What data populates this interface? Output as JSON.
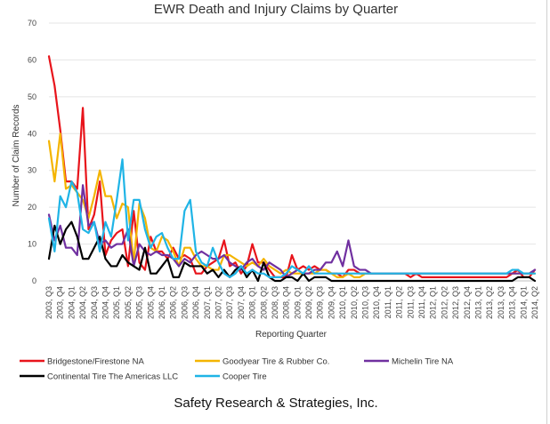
{
  "chart_data": {
    "type": "line",
    "title": "EWR Death and Injury Claims by Quarter",
    "xlabel": "Reporting Quarter",
    "ylabel": "Number of Claim Records",
    "ylim": [
      0,
      70
    ],
    "yticks": [
      0,
      10,
      20,
      30,
      40,
      50,
      60,
      70
    ],
    "grid": true,
    "legend_position": "bottom",
    "categories": [
      "2003, Q3",
      "2003, Q4",
      "2004, Q1",
      "2004, Q2",
      "2004, Q3",
      "2004, Q4",
      "2005, Q1",
      "2005, Q2",
      "2005, Q3",
      "2005, Q4",
      "2006, Q1",
      "2006, Q2",
      "2006, Q3",
      "2006, Q4",
      "2007, Q1",
      "2007, Q2",
      "2007, Q3",
      "2007, Q4",
      "2008, Q1",
      "2008, Q2",
      "2008, Q3",
      "2008, Q4",
      "2009, Q1",
      "2009, Q2",
      "2009, Q3",
      "2009, Q4",
      "2010, Q1",
      "2010, Q2",
      "2010, Q3",
      "2010, Q4",
      "2011, Q1",
      "2011, Q2",
      "2011, Q3",
      "2011, Q4",
      "2012, Q1",
      "2012, Q2",
      "2012, Q3",
      "2012, Q4",
      "2013, Q1",
      "2013, Q2",
      "2013, Q3",
      "2013, Q4",
      "2014, Q1",
      "2014, Q2"
    ],
    "x": [
      0,
      0.5,
      1,
      1.5,
      2,
      2.5,
      3,
      3.5,
      4,
      4.5,
      5,
      5.5,
      6,
      6.5,
      7,
      7.5,
      8,
      8.5,
      9,
      9.5,
      10,
      10.5,
      11,
      11.5,
      12,
      12.5,
      13,
      13.5,
      14,
      14.5,
      15,
      15.5,
      16,
      16.5,
      17,
      17.5,
      18,
      18.5,
      19,
      19.5,
      20,
      20.5,
      21,
      21.5,
      22,
      22.5,
      23,
      23.5,
      24,
      24.5,
      25,
      25.5,
      26,
      26.5,
      27,
      27.5,
      28,
      28.5,
      29,
      29.5,
      30,
      30.5,
      31,
      31.5,
      32,
      32.5,
      33,
      33.5,
      34,
      34.5,
      35,
      35.5,
      36,
      36.5,
      37,
      37.5,
      38,
      38.5,
      39,
      39.5,
      40,
      40.5,
      41,
      41.5,
      42,
      42.5,
      43
    ],
    "series": [
      {
        "name": "Bridgestone/Firestone NA",
        "color": "#e8141b",
        "values": [
          61,
          53,
          41,
          27,
          27,
          25,
          47,
          14,
          18,
          27,
          7,
          11,
          13,
          14,
          4,
          19,
          5,
          3,
          12,
          8,
          8,
          6,
          9,
          6,
          7,
          6,
          2,
          2,
          4,
          5,
          6,
          11,
          4,
          5,
          2,
          4,
          10,
          5,
          5,
          3,
          1,
          1,
          1,
          7,
          3,
          4,
          3,
          4,
          3,
          3,
          2,
          2,
          1,
          3,
          3,
          2,
          2,
          2,
          2,
          2,
          2,
          2,
          2,
          2,
          1,
          2,
          1,
          1,
          1,
          1,
          1,
          1,
          1,
          1,
          1,
          1,
          1,
          1,
          1,
          1,
          1,
          1,
          2,
          3,
          1,
          1,
          3
        ]
      },
      {
        "name": "Goodyear Tire & Rubber Co.",
        "color": "#f4b400",
        "values": [
          38,
          27,
          40,
          25,
          26,
          24,
          22,
          17,
          23,
          30,
          23,
          23,
          17,
          21,
          20,
          5,
          21,
          17,
          9,
          8,
          12,
          11,
          8,
          4,
          9,
          9,
          6,
          4,
          4,
          3,
          3,
          7,
          7,
          6,
          5,
          4,
          5,
          4,
          6,
          4,
          3,
          2,
          3,
          2,
          2,
          2,
          2,
          2,
          3,
          3,
          2,
          1,
          1,
          2,
          1,
          1,
          2,
          2,
          2,
          2,
          2,
          2,
          2,
          2,
          2,
          2,
          2,
          2,
          2,
          2,
          2,
          2,
          2,
          2,
          2,
          2,
          2,
          2,
          2,
          2,
          2,
          2,
          2,
          2,
          2,
          2,
          2
        ]
      },
      {
        "name": "Michelin Tire NA",
        "color": "#7030a0",
        "values": [
          18,
          11,
          15,
          9,
          9,
          7,
          26,
          15,
          16,
          10,
          11,
          9,
          10,
          10,
          14,
          4,
          10,
          8,
          7,
          8,
          7,
          7,
          6,
          4,
          6,
          5,
          7,
          8,
          7,
          6,
          6,
          7,
          5,
          4,
          3,
          5,
          6,
          4,
          3,
          5,
          4,
          3,
          1,
          2,
          3,
          2,
          2,
          3,
          3,
          5,
          5,
          8,
          4,
          11,
          4,
          3,
          3,
          2,
          2,
          2,
          2,
          2,
          2,
          2,
          2,
          2,
          2,
          2,
          2,
          2,
          2,
          2,
          2,
          2,
          2,
          2,
          2,
          2,
          2,
          2,
          2,
          2,
          2,
          2,
          2,
          2,
          3
        ]
      },
      {
        "name": "Continental Tire The Americas LLC",
        "color": "#000000",
        "values": [
          6,
          15,
          10,
          14,
          16,
          12,
          6,
          6,
          9,
          12,
          6,
          4,
          4,
          7,
          5,
          4,
          3,
          9,
          2,
          2,
          4,
          6,
          1,
          1,
          5,
          4,
          4,
          4,
          2,
          3,
          1,
          3,
          1,
          3,
          4,
          1,
          3,
          0,
          5,
          1,
          0,
          0,
          1,
          1,
          0,
          2,
          0,
          1,
          1,
          1,
          0,
          0,
          0,
          0,
          0,
          0,
          0,
          0,
          0,
          0,
          0,
          0,
          0,
          0,
          0,
          0,
          0,
          0,
          0,
          0,
          0,
          0,
          0,
          0,
          0,
          0,
          0,
          0,
          0,
          0,
          0,
          0,
          0,
          1,
          1,
          1,
          0
        ]
      },
      {
        "name": "Cooper Tire",
        "color": "#1fb4e6",
        "values": [
          17,
          8,
          23,
          20,
          27,
          24,
          14,
          13,
          16,
          8,
          16,
          12,
          22,
          33,
          11,
          22,
          22,
          14,
          9,
          12,
          13,
          9,
          6,
          6,
          19,
          22,
          8,
          5,
          4,
          9,
          5,
          2,
          1,
          2,
          4,
          2,
          3,
          2,
          2,
          1,
          1,
          1,
          2,
          4,
          3,
          2,
          4,
          2,
          2,
          2,
          2,
          2,
          2,
          2,
          2,
          2,
          2,
          2,
          2,
          2,
          2,
          2,
          2,
          2,
          2,
          2,
          2,
          2,
          2,
          2,
          2,
          2,
          2,
          2,
          2,
          2,
          2,
          2,
          2,
          2,
          2,
          2,
          3,
          3,
          2,
          2,
          2
        ]
      }
    ]
  },
  "footer": "Safety Research & Strategies, Inc."
}
